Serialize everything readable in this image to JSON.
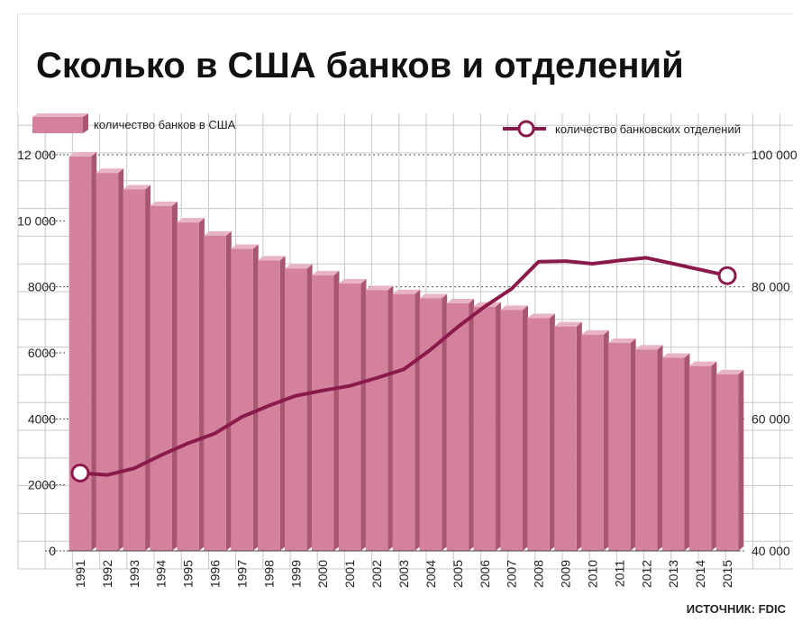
{
  "colors": {
    "bar_front": "#d4829c",
    "bar_side": "#a85672",
    "bar_top": "#e8b3c4",
    "line": "#8b1a4c",
    "grid": "#c8c8c8"
  },
  "chart_data": {
    "type": "bar",
    "title": "Сколько в США банков и отделений",
    "categories": [
      "1991",
      "1992",
      "1993",
      "1994",
      "1995",
      "1996",
      "1997",
      "1998",
      "1999",
      "2000",
      "2001",
      "2002",
      "2003",
      "2004",
      "2005",
      "2006",
      "2007",
      "2008",
      "2009",
      "2010",
      "2011",
      "2012",
      "2013",
      "2014",
      "2015"
    ],
    "series": [
      {
        "name": "количество банков в США",
        "type": "bar",
        "axis": "left",
        "values": [
          11950,
          11450,
          10950,
          10450,
          9950,
          9550,
          9150,
          8800,
          8550,
          8350,
          8100,
          7900,
          7780,
          7650,
          7500,
          7400,
          7300,
          7050,
          6800,
          6550,
          6300,
          6100,
          5850,
          5600,
          5350
        ]
      },
      {
        "name": "количество банковских отделений",
        "type": "line",
        "axis": "right",
        "values": [
          51800,
          51500,
          52500,
          54500,
          56300,
          57800,
          60300,
          62000,
          63500,
          64300,
          65000,
          66200,
          67500,
          70500,
          73900,
          77000,
          79700,
          83800,
          83900,
          83500,
          84000,
          84400,
          83500,
          82600,
          81700
        ]
      }
    ],
    "y_left": {
      "min": 0,
      "max": 12000,
      "ticks": [
        0,
        2000,
        4000,
        6000,
        8000,
        10000,
        12000
      ],
      "tick_labels": [
        "0",
        "2000",
        "4000",
        "6000",
        "8000",
        "10 000",
        "12 000"
      ]
    },
    "y_right": {
      "min": 40000,
      "max": 100000,
      "ticks": [
        40000,
        60000,
        80000,
        100000
      ],
      "tick_labels": [
        "40 000",
        "60 000",
        "80 000",
        "100 000"
      ]
    },
    "source": "ИСТОЧНИК: FDIC"
  }
}
